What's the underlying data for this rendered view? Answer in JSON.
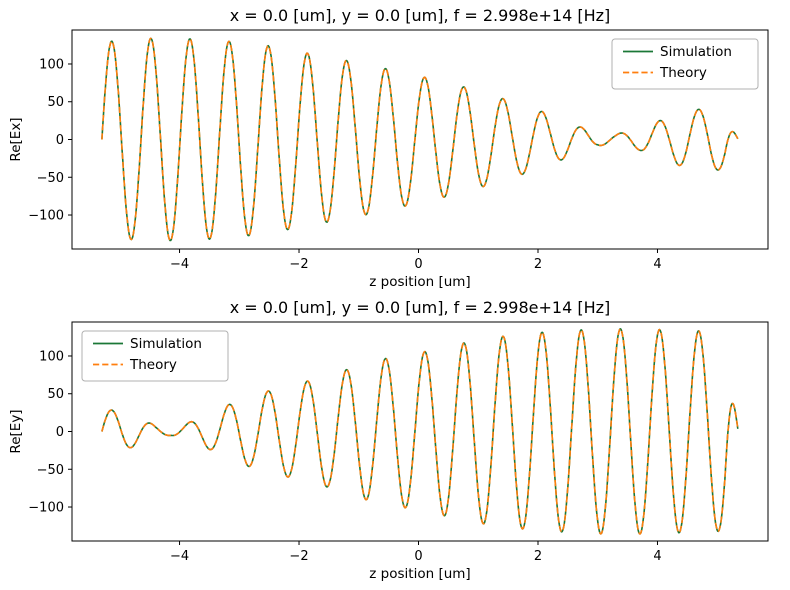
{
  "figure": {
    "background": "#ffffff"
  },
  "chart_data": [
    {
      "type": "line",
      "title": "x = 0.0 [um], y = 0.0 [um], f = 2.998e+14 [Hz]",
      "xlabel": "z position [um]",
      "ylabel": "Re[Ex]",
      "xlim": [
        -5.8,
        5.85
      ],
      "ylim": [
        -145,
        145
      ],
      "xticks": [
        -4,
        -2,
        0,
        2,
        4
      ],
      "yticks": [
        -100,
        -50,
        0,
        50,
        100
      ],
      "grid": false,
      "legend_position": "upper-right",
      "series": [
        {
          "name": "Simulation",
          "color": "#1b7837",
          "style": "solid"
        },
        {
          "name": "Theory",
          "color": "#ff7f0e",
          "style": "dashed"
        }
      ],
      "wave": {
        "z_start": -5.3,
        "z_end": 5.35,
        "carrier_wavelength_um": 0.655,
        "carrier_zero_z": -5.3,
        "edge_taper_um": 0.22,
        "envelope_z": [
          -5.3,
          -4.9,
          -4.5,
          -4.1,
          -3.7,
          -3.3,
          -2.9,
          -2.5,
          -2.1,
          -1.7,
          -1.3,
          -0.9,
          -0.5,
          -0.1,
          0.3,
          0.7,
          1.1,
          1.5,
          1.9,
          2.3,
          2.7,
          3.0,
          3.3,
          3.7,
          4.1,
          4.5,
          4.9,
          5.2,
          5.35
        ],
        "envelope_amp": [
          129,
          132,
          134,
          134,
          133,
          131,
          128,
          124,
          118,
          112,
          106,
          100,
          93,
          86,
          79,
          71,
          62,
          52,
          42,
          30,
          17,
          8,
          7,
          14,
          27,
          38,
          42,
          38,
          34
        ]
      }
    },
    {
      "type": "line",
      "title": "x = 0.0 [um], y = 0.0 [um], f = 2.998e+14 [Hz]",
      "xlabel": "z position [um]",
      "ylabel": "Re[Ey]",
      "xlim": [
        -5.8,
        5.85
      ],
      "ylim": [
        -145,
        145
      ],
      "xticks": [
        -4,
        -2,
        0,
        2,
        4
      ],
      "yticks": [
        -100,
        -50,
        0,
        50,
        100
      ],
      "grid": false,
      "legend_position": "upper-left",
      "series": [
        {
          "name": "Simulation",
          "color": "#1b7837",
          "style": "solid"
        },
        {
          "name": "Theory",
          "color": "#ff7f0e",
          "style": "dashed"
        }
      ],
      "wave": {
        "z_start": -5.3,
        "z_end": 5.35,
        "carrier_wavelength_um": 0.655,
        "carrier_zero_z": -5.3,
        "edge_taper_um": 0.22,
        "envelope_z": [
          -5.3,
          -5.0,
          -4.7,
          -4.4,
          -4.15,
          -3.9,
          -3.6,
          -3.3,
          -3.0,
          -2.7,
          -2.4,
          -2.1,
          -1.8,
          -1.5,
          -1.2,
          -0.9,
          -0.6,
          -0.3,
          0.0,
          0.4,
          0.8,
          1.2,
          1.6,
          2.0,
          2.4,
          2.8,
          3.2,
          3.6,
          4.0,
          4.4,
          4.8,
          5.1,
          5.35
        ],
        "envelope_amp": [
          30,
          27,
          18,
          8,
          5,
          10,
          20,
          31,
          42,
          50,
          56,
          62,
          68,
          74,
          82,
          90,
          96,
          100,
          104,
          111,
          118,
          124,
          128,
          131,
          133,
          135,
          136,
          136,
          135,
          134,
          133,
          132,
          130
        ]
      }
    }
  ]
}
